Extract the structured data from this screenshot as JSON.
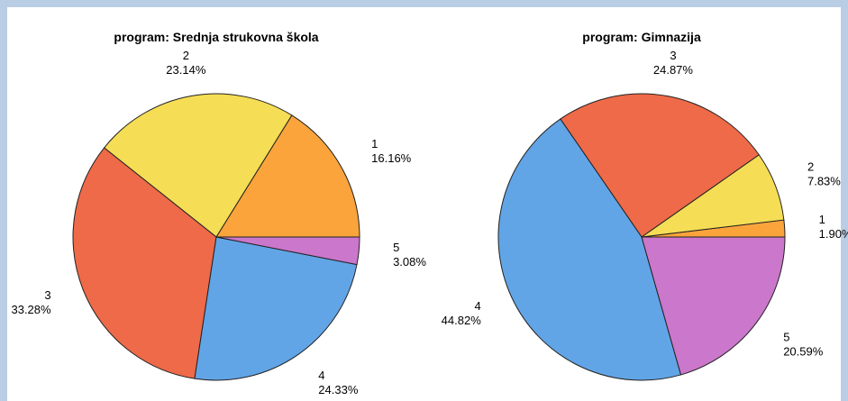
{
  "chart_data": [
    {
      "type": "pie",
      "title": "program: Srednja strukovna škola",
      "categories": [
        "1",
        "2",
        "3",
        "4",
        "5"
      ],
      "values": [
        16.16,
        23.14,
        33.28,
        24.33,
        3.08
      ],
      "value_labels": [
        "16.16%",
        "23.14%",
        "33.28%",
        "24.33%",
        "3.08%"
      ],
      "colors": [
        "#fba43b",
        "#f5dd55",
        "#ee6a48",
        "#62a5e6",
        "#cb77cb"
      ]
    },
    {
      "type": "pie",
      "title": "program: Gimnazija",
      "categories": [
        "1",
        "2",
        "3",
        "4",
        "5"
      ],
      "values": [
        1.9,
        7.83,
        24.87,
        44.82,
        20.59
      ],
      "value_labels": [
        "1.90%",
        "7.83%",
        "24.87%",
        "44.82%",
        "20.59%"
      ],
      "colors": [
        "#fba43b",
        "#f5dd55",
        "#ee6a48",
        "#62a5e6",
        "#cb77cb"
      ]
    }
  ]
}
